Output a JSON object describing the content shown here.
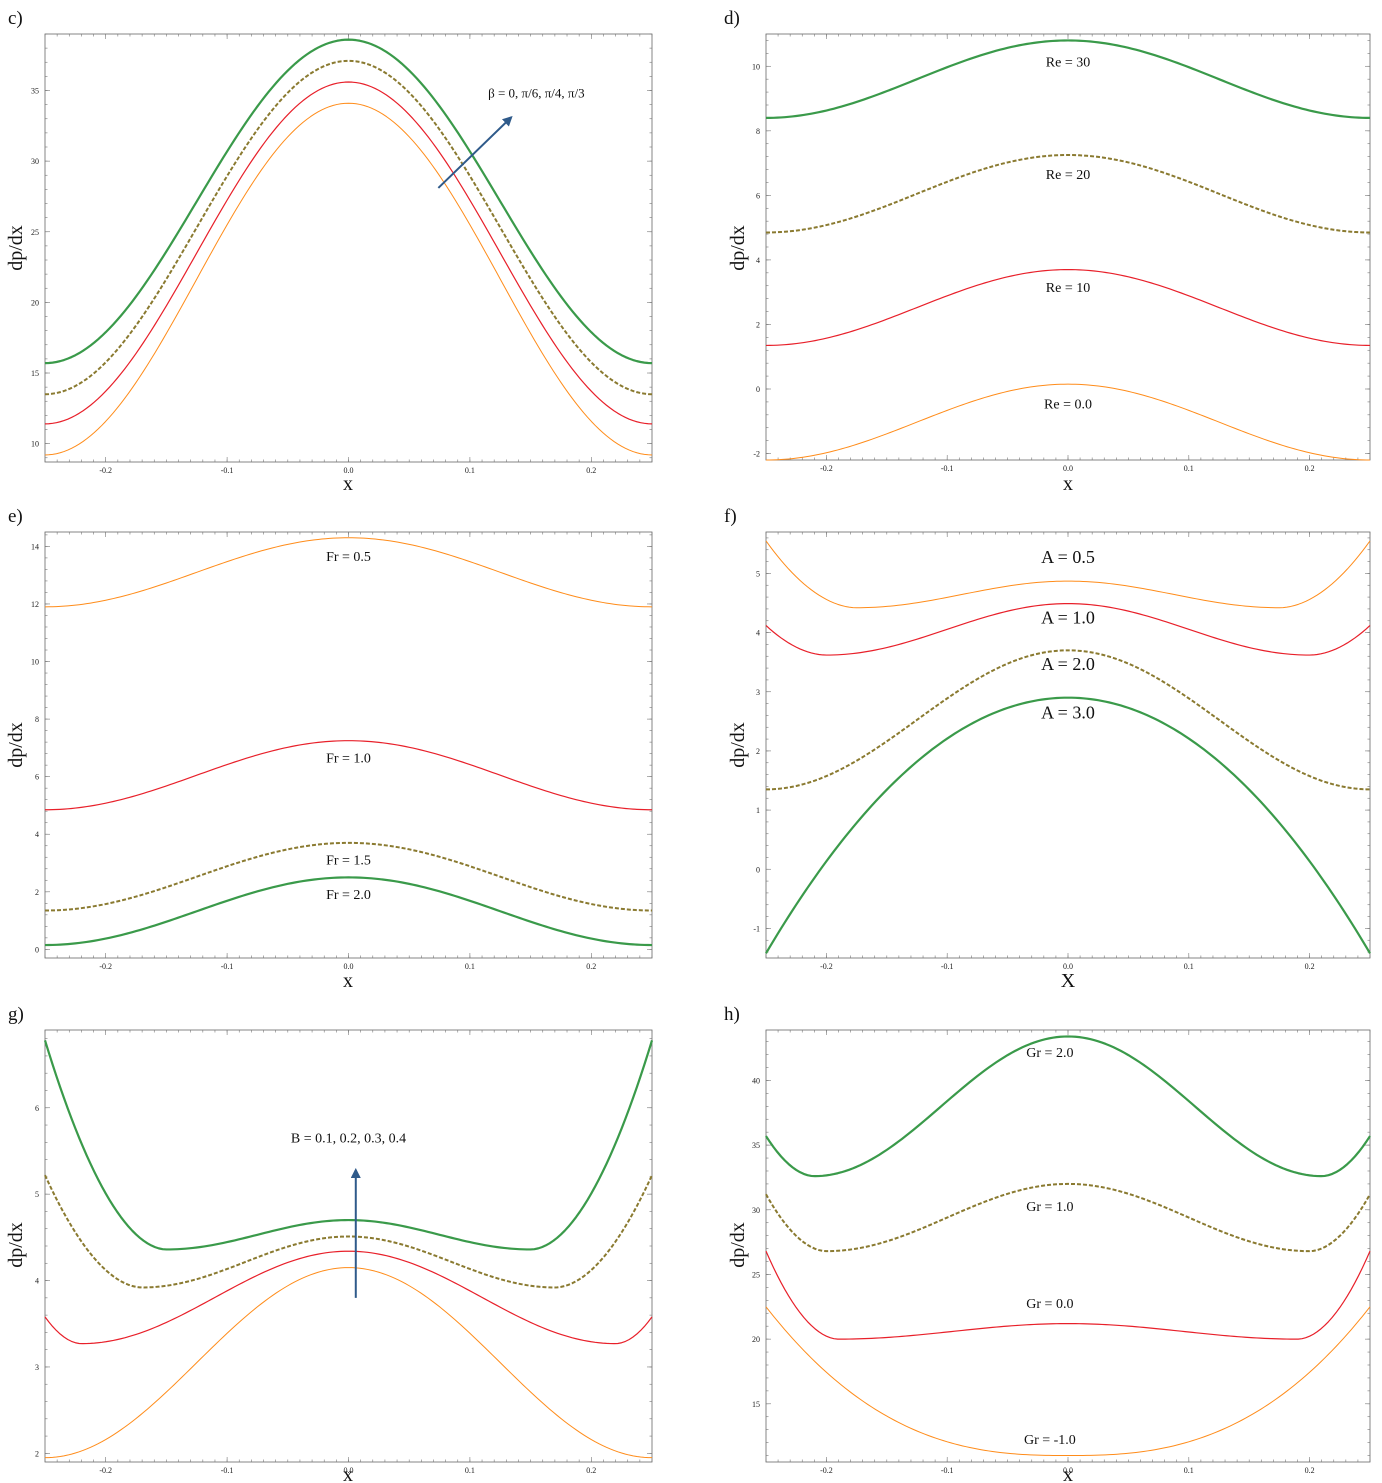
{
  "colors": {
    "orange": "#ff8c1a",
    "red": "#e8202a",
    "olive": "#8a7a30",
    "green": "#3a9a4a",
    "arrow": "#2f5a8a"
  },
  "chart_data": [
    {
      "panel": "c)",
      "type": "line",
      "xlabel": "x",
      "ylabel": "dp/dx",
      "xlim": [
        -0.25,
        0.25
      ],
      "ylim": [
        8.7,
        39
      ],
      "xticks": [
        -0.2,
        -0.1,
        0.0,
        0.1,
        0.2
      ],
      "xticklabels": [
        "-0.2",
        "-0.1",
        "0.0",
        "0.1",
        "0.2"
      ],
      "yticks": [
        10,
        15,
        20,
        25,
        30,
        35
      ],
      "yticklabels": [
        "10",
        "15",
        "20",
        "25",
        "30",
        "35"
      ],
      "series": [
        {
          "color": "orange",
          "style": "solid",
          "shape": "cosine",
          "edge": 9.2,
          "center": 34.1,
          "lw": 1
        },
        {
          "color": "red",
          "style": "solid",
          "shape": "cosine",
          "edge": 11.4,
          "center": 35.6,
          "lw": 1.2
        },
        {
          "color": "olive",
          "style": "dashed",
          "shape": "cosine",
          "edge": 13.5,
          "center": 37.1,
          "lw": 2
        },
        {
          "color": "green",
          "style": "solid",
          "shape": "cosine",
          "edge": 15.7,
          "center": 38.6,
          "lw": 2.2
        }
      ],
      "annotations": [
        {
          "text": "β = 0, π/6, π/4, π/3",
          "x": 0.115,
          "y": 34.5,
          "size": 13
        }
      ],
      "arrow": {
        "x1": 0.074,
        "y1": 28.1,
        "x2": 0.134,
        "y2": 33.1
      }
    },
    {
      "panel": "d)",
      "type": "line",
      "xlabel": "x",
      "ylabel": "dp/dx",
      "xlim": [
        -0.25,
        0.25
      ],
      "ylim": [
        -2.2,
        11
      ],
      "xticks": [
        -0.2,
        -0.1,
        0.0,
        0.1,
        0.2
      ],
      "xticklabels": [
        "-0.2",
        "-0.1",
        "0.0",
        "0.1",
        "0.2"
      ],
      "yticks": [
        -2,
        0,
        2,
        4,
        6,
        8,
        10
      ],
      "yticklabels": [
        "-2",
        "0",
        "2",
        "4",
        "6",
        "8",
        "10"
      ],
      "series": [
        {
          "color": "orange",
          "style": "solid",
          "shape": "cosine",
          "edge": -2.2,
          "center": 0.15,
          "lw": 1
        },
        {
          "color": "red",
          "style": "solid",
          "shape": "cosine",
          "edge": 1.35,
          "center": 3.7,
          "lw": 1.2
        },
        {
          "color": "olive",
          "style": "dashed",
          "shape": "cosine",
          "edge": 4.85,
          "center": 7.25,
          "lw": 2
        },
        {
          "color": "green",
          "style": "solid",
          "shape": "cosine",
          "edge": 8.4,
          "center": 10.8,
          "lw": 2.2
        }
      ],
      "annotations": [
        {
          "text": "Re = 30",
          "x": 0.0,
          "y": 10.0,
          "size": 14
        },
        {
          "text": "Re = 20",
          "x": 0.0,
          "y": 6.5,
          "size": 14
        },
        {
          "text": "Re = 10",
          "x": 0.0,
          "y": 3.0,
          "size": 14
        },
        {
          "text": "Re = 0.0",
          "x": 0.0,
          "y": -0.6,
          "size": 14
        }
      ]
    },
    {
      "panel": "e)",
      "type": "line",
      "xlabel": "x",
      "ylabel": "dp/dx",
      "xlim": [
        -0.25,
        0.25
      ],
      "ylim": [
        -0.3,
        14.5
      ],
      "xticks": [
        -0.2,
        -0.1,
        0.0,
        0.1,
        0.2
      ],
      "xticklabels": [
        "-0.2",
        "-0.1",
        "0.0",
        "0.1",
        "0.2"
      ],
      "yticks": [
        0,
        2,
        4,
        6,
        8,
        10,
        12,
        14
      ],
      "yticklabels": [
        "0",
        "2",
        "4",
        "6",
        "8",
        "10",
        "12",
        "14"
      ],
      "series": [
        {
          "color": "orange",
          "style": "solid",
          "shape": "cosine",
          "edge": 11.9,
          "center": 14.3,
          "lw": 1
        },
        {
          "color": "red",
          "style": "solid",
          "shape": "cosine",
          "edge": 4.85,
          "center": 7.25,
          "lw": 1.2
        },
        {
          "color": "olive",
          "style": "dashed",
          "shape": "cosine",
          "edge": 1.35,
          "center": 3.7,
          "lw": 2
        },
        {
          "color": "green",
          "style": "solid",
          "shape": "cosine",
          "edge": 0.15,
          "center": 2.5,
          "lw": 2.2
        }
      ],
      "annotations": [
        {
          "text": "Fr = 0.5",
          "x": 0.0,
          "y": 13.5,
          "size": 14
        },
        {
          "text": "Fr = 1.0",
          "x": 0.0,
          "y": 6.5,
          "size": 14
        },
        {
          "text": "Fr = 1.5",
          "x": 0.0,
          "y": 2.95,
          "size": 14
        },
        {
          "text": "Fr = 2.0",
          "x": 0.0,
          "y": 1.75,
          "size": 14
        }
      ]
    },
    {
      "panel": "f)",
      "type": "line",
      "xlabel": "X",
      "ylabel": "dp/dx",
      "xlim": [
        -0.25,
        0.25
      ],
      "ylim": [
        -1.5,
        5.7
      ],
      "xticks": [
        -0.2,
        -0.1,
        0.0,
        0.1,
        0.2
      ],
      "xticklabels": [
        "-0.2",
        "-0.1",
        "0.0",
        "0.1",
        "0.2"
      ],
      "yticks": [
        -1,
        0,
        1,
        2,
        3,
        4,
        5
      ],
      "yticklabels": [
        "-1",
        "0",
        "1",
        "2",
        "3",
        "4",
        "5"
      ],
      "series": [
        {
          "color": "orange",
          "style": "solid",
          "shape": "wshape",
          "edge": 5.55,
          "center": 4.87,
          "min": 4.42,
          "xmin": 0.175,
          "lw": 1
        },
        {
          "color": "red",
          "style": "solid",
          "shape": "wshape",
          "edge": 4.12,
          "center": 4.49,
          "min": 3.62,
          "xmin": 0.2,
          "lw": 1.2
        },
        {
          "color": "olive",
          "style": "dashed",
          "shape": "cosine",
          "edge": 1.35,
          "center": 3.7,
          "lw": 2
        },
        {
          "color": "green",
          "style": "solid",
          "shape": "parabola",
          "edge": -1.42,
          "center": 2.9,
          "lw": 2.2
        }
      ],
      "annotations": [
        {
          "text": "A = 0.5",
          "x": 0.0,
          "y": 5.18,
          "size": 18
        },
        {
          "text": "A = 1.0",
          "x": 0.0,
          "y": 4.15,
          "size": 18
        },
        {
          "text": "A = 2.0",
          "x": 0.0,
          "y": 3.37,
          "size": 18
        },
        {
          "text": "A = 3.0",
          "x": 0.0,
          "y": 2.55,
          "size": 18
        }
      ]
    },
    {
      "panel": "g)",
      "type": "line",
      "xlabel": "x",
      "ylabel": "dp/dx",
      "xlim": [
        -0.25,
        0.25
      ],
      "ylim": [
        1.9,
        6.9
      ],
      "xticks": [
        -0.2,
        -0.1,
        0.0,
        0.1,
        0.2
      ],
      "xticklabels": [
        "-0.2",
        "-0.1",
        "0.0",
        "0.1",
        "0.2"
      ],
      "yticks": [
        2,
        3,
        4,
        5,
        6
      ],
      "yticklabels": [
        "2",
        "3",
        "4",
        "5",
        "6"
      ],
      "series": [
        {
          "color": "orange",
          "style": "solid",
          "shape": "cosine",
          "edge": 1.95,
          "center": 4.15,
          "lw": 1
        },
        {
          "color": "red",
          "style": "solid",
          "shape": "wshape",
          "edge": 3.58,
          "center": 4.34,
          "min": 3.27,
          "xmin": 0.22,
          "lw": 1.2
        },
        {
          "color": "olive",
          "style": "dashed",
          "shape": "wshape",
          "edge": 5.22,
          "center": 4.51,
          "min": 3.92,
          "xmin": 0.17,
          "lw": 2
        },
        {
          "color": "green",
          "style": "solid",
          "shape": "wshape",
          "edge": 6.78,
          "center": 4.7,
          "min": 4.36,
          "xmin": 0.15,
          "lw": 2.2
        }
      ],
      "annotations": [
        {
          "text": "B = 0.1, 0.2, 0.3, 0.4",
          "x": 0.0,
          "y": 5.6,
          "size": 14
        }
      ],
      "arrow": {
        "x1": 0.006,
        "y1": 3.8,
        "x2": 0.006,
        "y2": 5.28
      }
    },
    {
      "panel": "h)",
      "type": "line",
      "xlabel": "x",
      "ylabel": "dp/dx",
      "xlim": [
        -0.25,
        0.25
      ],
      "ylim": [
        10.5,
        43.9
      ],
      "xticks": [
        -0.2,
        -0.1,
        0.0,
        0.1,
        0.2
      ],
      "xticklabels": [
        "-0.2",
        "-0.1",
        "0.0",
        "0.1",
        "0.2"
      ],
      "yticks": [
        15,
        20,
        25,
        30,
        35,
        40
      ],
      "yticklabels": [
        "15",
        "20",
        "25",
        "30",
        "35",
        "40"
      ],
      "series": [
        {
          "color": "orange",
          "style": "solid",
          "shape": "ushape",
          "edge": 22.5,
          "center": 11.0,
          "lw": 1
        },
        {
          "color": "red",
          "style": "solid",
          "shape": "wshape",
          "edge": 26.8,
          "center": 21.2,
          "min": 20.0,
          "xmin": 0.19,
          "lw": 1.2
        },
        {
          "color": "olive",
          "style": "dashed",
          "shape": "wshape",
          "edge": 31.2,
          "center": 32.0,
          "min": 26.8,
          "xmin": 0.2,
          "lw": 2
        },
        {
          "color": "green",
          "style": "solid",
          "shape": "wshape",
          "edge": 35.7,
          "center": 43.4,
          "min": 32.6,
          "xmin": 0.21,
          "lw": 2.2
        }
      ],
      "annotations": [
        {
          "text": "Gr = 2.0",
          "x": -0.015,
          "y": 41.8,
          "size": 14
        },
        {
          "text": "Gr = 1.0",
          "x": -0.015,
          "y": 29.9,
          "size": 14
        },
        {
          "text": "Gr = 0.0",
          "x": -0.015,
          "y": 22.4,
          "size": 14
        },
        {
          "text": "Gr = -1.0",
          "x": -0.015,
          "y": 11.9,
          "size": 14
        }
      ]
    }
  ]
}
